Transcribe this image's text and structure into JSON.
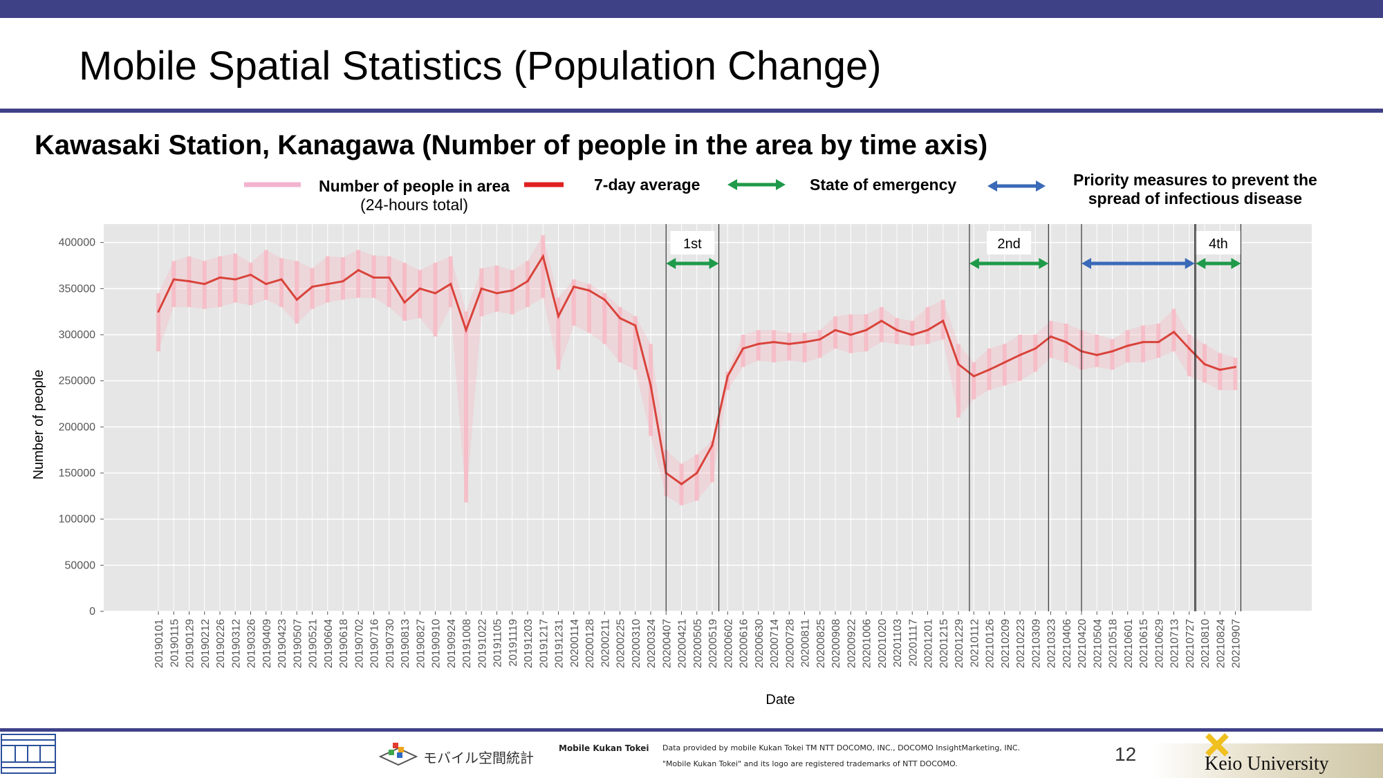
{
  "slide": {
    "title": "Mobile Spatial Statistics (Population Change)",
    "subtitle": "Kawasaki Station, Kanagawa (Number of people in the area by time axis)",
    "page_number": "12",
    "colors": {
      "accent_bar": "#3f4187",
      "series_daily": "#f7b8c2",
      "series_avg": "#d9433a",
      "emergency": "#1f9a4a",
      "priority": "#3a6ab8",
      "plot_bg": "#e6e6e6"
    }
  },
  "legend": {
    "daily_label": "Number of people in area",
    "daily_sub": "(24-hours total)",
    "avg_label": "7-day average",
    "emergency_label": "State of emergency",
    "priority_label_1": "Priority measures to prevent the",
    "priority_label_2": "spread of infectious disease"
  },
  "footer": {
    "brand_label": "Mobile Kukan Tokei",
    "logo_text": "モバイル空間統計",
    "credit_1": "Data provided by mobile Kukan Tokei TM NTT DOCOMO, INC., DOCOMO InsightMarketing, INC.",
    "credit_2": "\"Mobile Kukan Tokei\" and its logo are registered trademarks of NTT DOCOMO.",
    "university": "Keio University"
  },
  "chart_data": {
    "type": "line",
    "xlabel": "Date",
    "ylabel": "Number of people",
    "ylim": [
      0,
      420000
    ],
    "yticks": [
      0,
      50000,
      100000,
      150000,
      200000,
      250000,
      300000,
      350000,
      400000
    ],
    "grid": true,
    "x_tick_labels": [
      "20190101",
      "20190115",
      "20190129",
      "20190212",
      "20190226",
      "20190312",
      "20190326",
      "20190409",
      "20190423",
      "20190507",
      "20190521",
      "20190604",
      "20190618",
      "20190702",
      "20190716",
      "20190730",
      "20190813",
      "20190827",
      "20190910",
      "20190924",
      "20191008",
      "20191022",
      "20191105",
      "20191119",
      "20191203",
      "20191217",
      "20191231",
      "20200114",
      "20200128",
      "20200211",
      "20200225",
      "20200310",
      "20200324",
      "20200407",
      "20200421",
      "20200505",
      "20200519",
      "20200602",
      "20200616",
      "20200630",
      "20200714",
      "20200728",
      "20200811",
      "20200825",
      "20200908",
      "20200922",
      "20201006",
      "20201020",
      "20201103",
      "20201117",
      "20201201",
      "20201215",
      "20201229",
      "20210112",
      "20210126",
      "20210209",
      "20210223",
      "20210309",
      "20210323",
      "20210406",
      "20210420",
      "20210504",
      "20210518",
      "20210601",
      "20210615",
      "20210629",
      "20210713",
      "20210727",
      "20210810",
      "20210824",
      "20210907"
    ],
    "series": [
      {
        "name": "Number of people in area",
        "interval_days": 14,
        "x_start": "20190101",
        "high": [
          345000,
          380000,
          385000,
          380000,
          385000,
          388000,
          378000,
          392000,
          383000,
          380000,
          372000,
          385000,
          384000,
          392000,
          386000,
          385000,
          378000,
          370000,
          378000,
          385000,
          325000,
          372000,
          375000,
          370000,
          380000,
          408000,
          340000,
          360000,
          355000,
          345000,
          330000,
          320000,
          290000,
          175000,
          160000,
          170000,
          185000,
          260000,
          300000,
          305000,
          305000,
          302000,
          302000,
          305000,
          320000,
          322000,
          322000,
          330000,
          318000,
          315000,
          330000,
          338000,
          290000,
          270000,
          285000,
          290000,
          300000,
          300000,
          315000,
          312000,
          305000,
          300000,
          295000,
          305000,
          310000,
          312000,
          328000,
          300000,
          290000,
          280000,
          275000
        ],
        "low": [
          282000,
          330000,
          330000,
          328000,
          330000,
          335000,
          332000,
          338000,
          330000,
          312000,
          328000,
          335000,
          338000,
          340000,
          340000,
          330000,
          315000,
          318000,
          298000,
          330000,
          118000,
          320000,
          325000,
          322000,
          330000,
          340000,
          262000,
          310000,
          302000,
          290000,
          270000,
          262000,
          190000,
          125000,
          115000,
          120000,
          140000,
          240000,
          265000,
          272000,
          270000,
          272000,
          270000,
          275000,
          285000,
          280000,
          282000,
          292000,
          290000,
          288000,
          290000,
          295000,
          210000,
          230000,
          240000,
          245000,
          250000,
          260000,
          275000,
          270000,
          262000,
          265000,
          262000,
          270000,
          270000,
          275000,
          282000,
          255000,
          248000,
          240000,
          240000
        ]
      },
      {
        "name": "7-day average",
        "interval_days": 14,
        "x_start": "20190101",
        "values": [
          325000,
          360000,
          358000,
          355000,
          362000,
          360000,
          365000,
          355000,
          360000,
          338000,
          352000,
          355000,
          358000,
          370000,
          362000,
          362000,
          335000,
          350000,
          345000,
          355000,
          305000,
          350000,
          345000,
          348000,
          358000,
          385000,
          320000,
          352000,
          348000,
          338000,
          318000,
          310000,
          245000,
          150000,
          138000,
          150000,
          180000,
          255000,
          285000,
          290000,
          292000,
          290000,
          292000,
          295000,
          305000,
          300000,
          305000,
          315000,
          305000,
          300000,
          305000,
          315000,
          268000,
          255000,
          262000,
          270000,
          278000,
          285000,
          298000,
          292000,
          282000,
          278000,
          282000,
          288000,
          292000,
          292000,
          303000,
          285000,
          268000,
          262000,
          265000
        ]
      }
    ],
    "periods": [
      {
        "label": "1st",
        "type": "State of emergency",
        "start": "20200407",
        "end": "20200525"
      },
      {
        "label": "2nd",
        "type": "State of emergency",
        "start": "20210108",
        "end": "20210321"
      },
      {
        "label": "",
        "type": "Priority measures to prevent the spread of infectious disease",
        "start": "20210420",
        "end": "20210801"
      },
      {
        "label": "4th",
        "type": "State of emergency",
        "start": "20210802",
        "end": "20210912"
      }
    ]
  }
}
